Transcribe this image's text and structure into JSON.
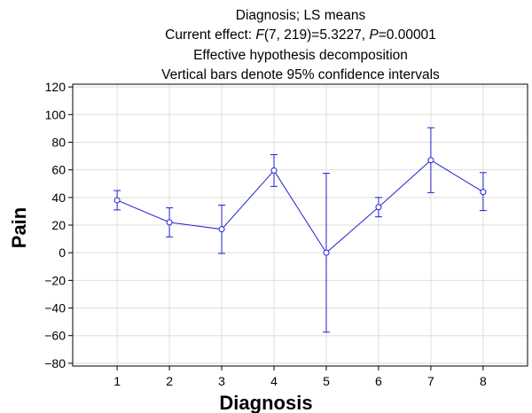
{
  "chart_data": {
    "type": "line",
    "title_lines": [
      "Diagnosis; LS means",
      "Current effect: F(7, 219)=5.3227, P=0.00001",
      "Effective hypothesis decomposition",
      "Vertical bars denote 95% confidence intervals"
    ],
    "title_effect_parts": {
      "prefix": "Current effect: ",
      "F": "F",
      "f_args": "(7, 219)=5.3227, ",
      "P": "P",
      "p_value": "=0.00001"
    },
    "xlabel": "Diagnosis",
    "ylabel": "Pain",
    "x_ticks": [
      "1",
      "2",
      "3",
      "4",
      "5",
      "6",
      "7",
      "8"
    ],
    "y_ticks": [
      -80,
      -60,
      -40,
      -20,
      0,
      20,
      40,
      60,
      80,
      100,
      120
    ],
    "xlim": [
      0.15,
      8.85
    ],
    "ylim": [
      -82,
      122
    ],
    "grid": true,
    "series": [
      {
        "x": [
          1,
          2,
          3,
          4,
          5,
          6,
          7,
          8
        ],
        "values": [
          38,
          22,
          17,
          59.5,
          0,
          33,
          67,
          44
        ],
        "ci_lower": [
          31,
          11.5,
          -0.5,
          48,
          -57.5,
          26,
          43.5,
          30.5
        ],
        "ci_upper": [
          45,
          32.5,
          34.5,
          71,
          57.5,
          40,
          90.5,
          58
        ],
        "color": "#1f1fd6"
      }
    ]
  }
}
